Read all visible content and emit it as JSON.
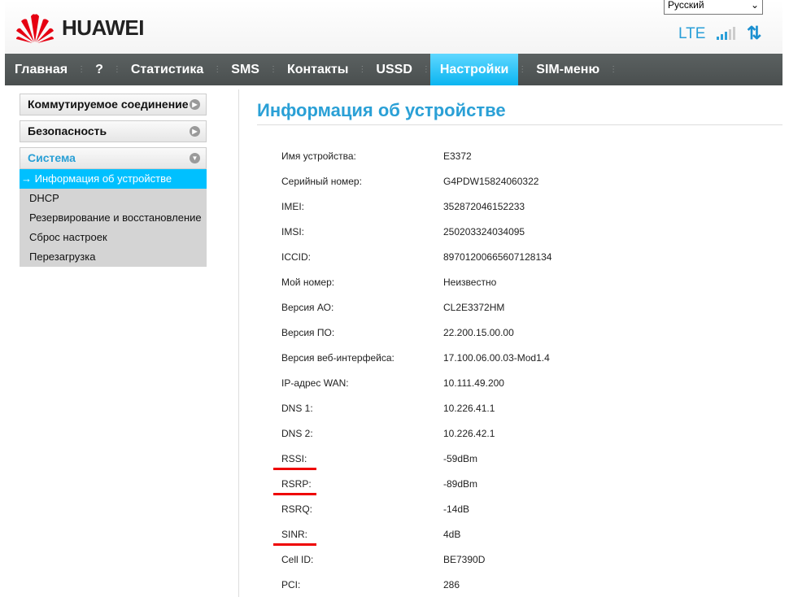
{
  "header": {
    "brand": "HUAWEI",
    "language": "Русский",
    "network_type": "LTE",
    "signal_level": 3,
    "signal_max": 5
  },
  "nav": [
    "Главная",
    "?",
    "Статистика",
    "SMS",
    "Контакты",
    "USSD",
    "Настройки",
    "SIM-меню"
  ],
  "nav_active": "Настройки",
  "sidebar": {
    "sections": [
      "Коммутируемое соединение",
      "Безопасность",
      "Система"
    ],
    "items": [
      "Информация об устройстве",
      "DHCP",
      "Резервирование и восстановление",
      "Сброс настроек",
      "Перезагрузка"
    ],
    "arrow": "→"
  },
  "title": "Информация об устройстве",
  "rows": [
    {
      "label": "Имя устройства:",
      "value": "E3372"
    },
    {
      "label": "Серийный номер:",
      "value": "G4PDW15824060322"
    },
    {
      "label": "IMEI:",
      "value": "352872046152233"
    },
    {
      "label": "IMSI:",
      "value": "250203324034095"
    },
    {
      "label": "ICCID:",
      "value": "89701200665607128134"
    },
    {
      "label": "Мой номер:",
      "value": "Неизвестно"
    },
    {
      "label": "Версия АО:",
      "value": "CL2E3372HM"
    },
    {
      "label": "Версия ПО:",
      "value": "22.200.15.00.00"
    },
    {
      "label": "Версия веб-интерфейса:",
      "value": "17.100.06.00.03-Mod1.4"
    },
    {
      "label": "IP-адрес WAN:",
      "value": "10.111.49.200"
    },
    {
      "label": "DNS 1:",
      "value": "10.226.41.1"
    },
    {
      "label": "DNS 2:",
      "value": "10.226.42.1"
    },
    {
      "label": "RSSI:",
      "value": "-59dBm"
    },
    {
      "label": "RSRP:",
      "value": "-89dBm"
    },
    {
      "label": "RSRQ:",
      "value": "-14dB"
    },
    {
      "label": "SINR:",
      "value": "4dB"
    },
    {
      "label": "Cell ID:",
      "value": "BE7390D"
    },
    {
      "label": "PCI:",
      "value": "286"
    }
  ],
  "highlighted": [
    "RSSI:",
    "RSRP:",
    "SINR:"
  ],
  "colors": {
    "accent": "#2aa0d6",
    "active_tab": "#0bb5f0",
    "highlight_underline": "#ee0000"
  }
}
